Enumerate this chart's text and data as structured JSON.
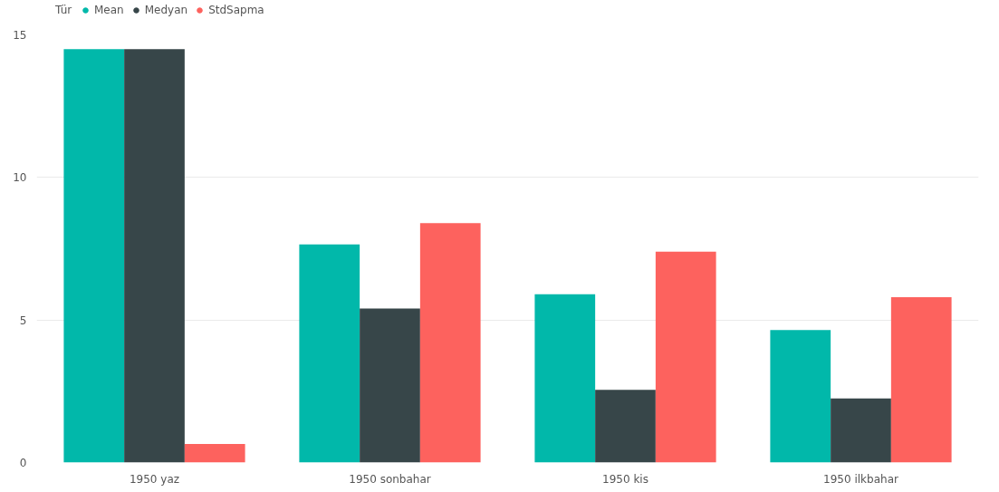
{
  "chart_data": {
    "type": "bar",
    "legend_title": "Tür",
    "categories": [
      "1950 yaz",
      "1950 sonbahar",
      "1950 kis",
      "1950 ilkbahar"
    ],
    "series": [
      {
        "name": "Mean",
        "color": "#01b8aa",
        "values": [
          14.5,
          7.65,
          5.9,
          4.65
        ]
      },
      {
        "name": "Medyan",
        "color": "#374649",
        "values": [
          14.5,
          5.4,
          2.55,
          2.25
        ]
      },
      {
        "name": "StdSapma",
        "color": "#fd625e",
        "values": [
          0.65,
          8.4,
          7.4,
          5.8
        ]
      }
    ],
    "ylim": [
      0,
      15
    ],
    "yticks": [
      0,
      5,
      10,
      15
    ],
    "grid": "y",
    "legend": "top left"
  }
}
